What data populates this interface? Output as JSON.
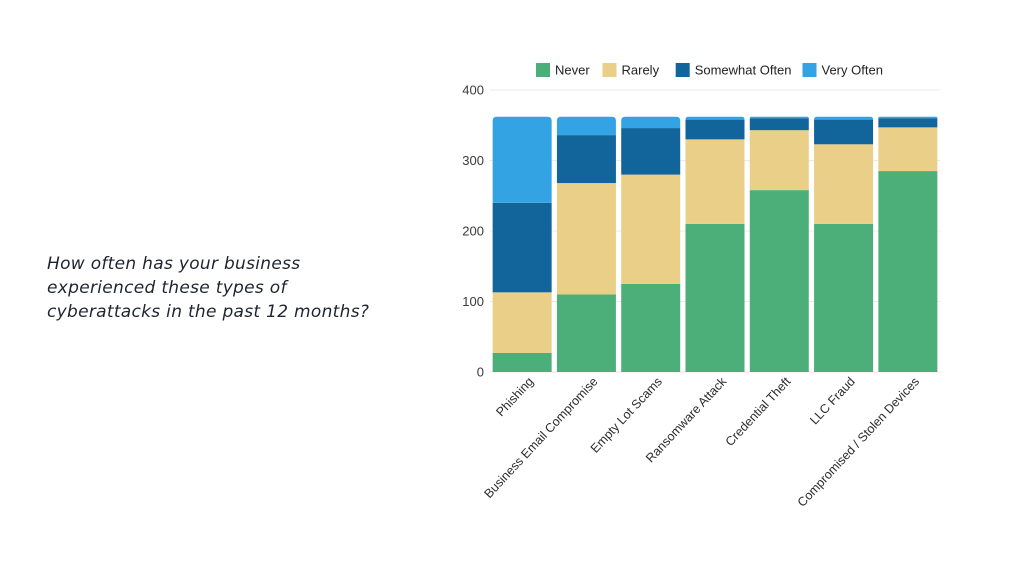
{
  "question": {
    "lines": [
      "How often has your business",
      "experienced these types of",
      "cyberattacks in the past 12 months?"
    ]
  },
  "chart_data": {
    "type": "bar",
    "stacked": true,
    "title": "",
    "xlabel": "",
    "ylabel": "",
    "ylim": [
      0,
      400
    ],
    "yticks": [
      0,
      100,
      200,
      300,
      400
    ],
    "legend_position": "top",
    "categories": [
      "Phishing",
      "Business Email Compromise",
      "Empty Lot Scams",
      "Ransomware Attack",
      "Credential Theft",
      "LLC Fraud",
      "Compromised / Stolen Devices"
    ],
    "series": [
      {
        "name": "Never",
        "color": "#4caf7a",
        "values": [
          27,
          110,
          125,
          210,
          258,
          210,
          285
        ]
      },
      {
        "name": "Rarely",
        "color": "#e9cf87",
        "values": [
          86,
          158,
          155,
          120,
          85,
          113,
          62
        ]
      },
      {
        "name": "Somewhat Often",
        "color": "#12659a",
        "values": [
          127,
          68,
          66,
          28,
          17,
          35,
          13
        ]
      },
      {
        "name": "Very Often",
        "color": "#33a3e3",
        "values": [
          122,
          26,
          16,
          4,
          2,
          4,
          2
        ]
      }
    ],
    "grid": {
      "color": "#eaeaea"
    }
  }
}
